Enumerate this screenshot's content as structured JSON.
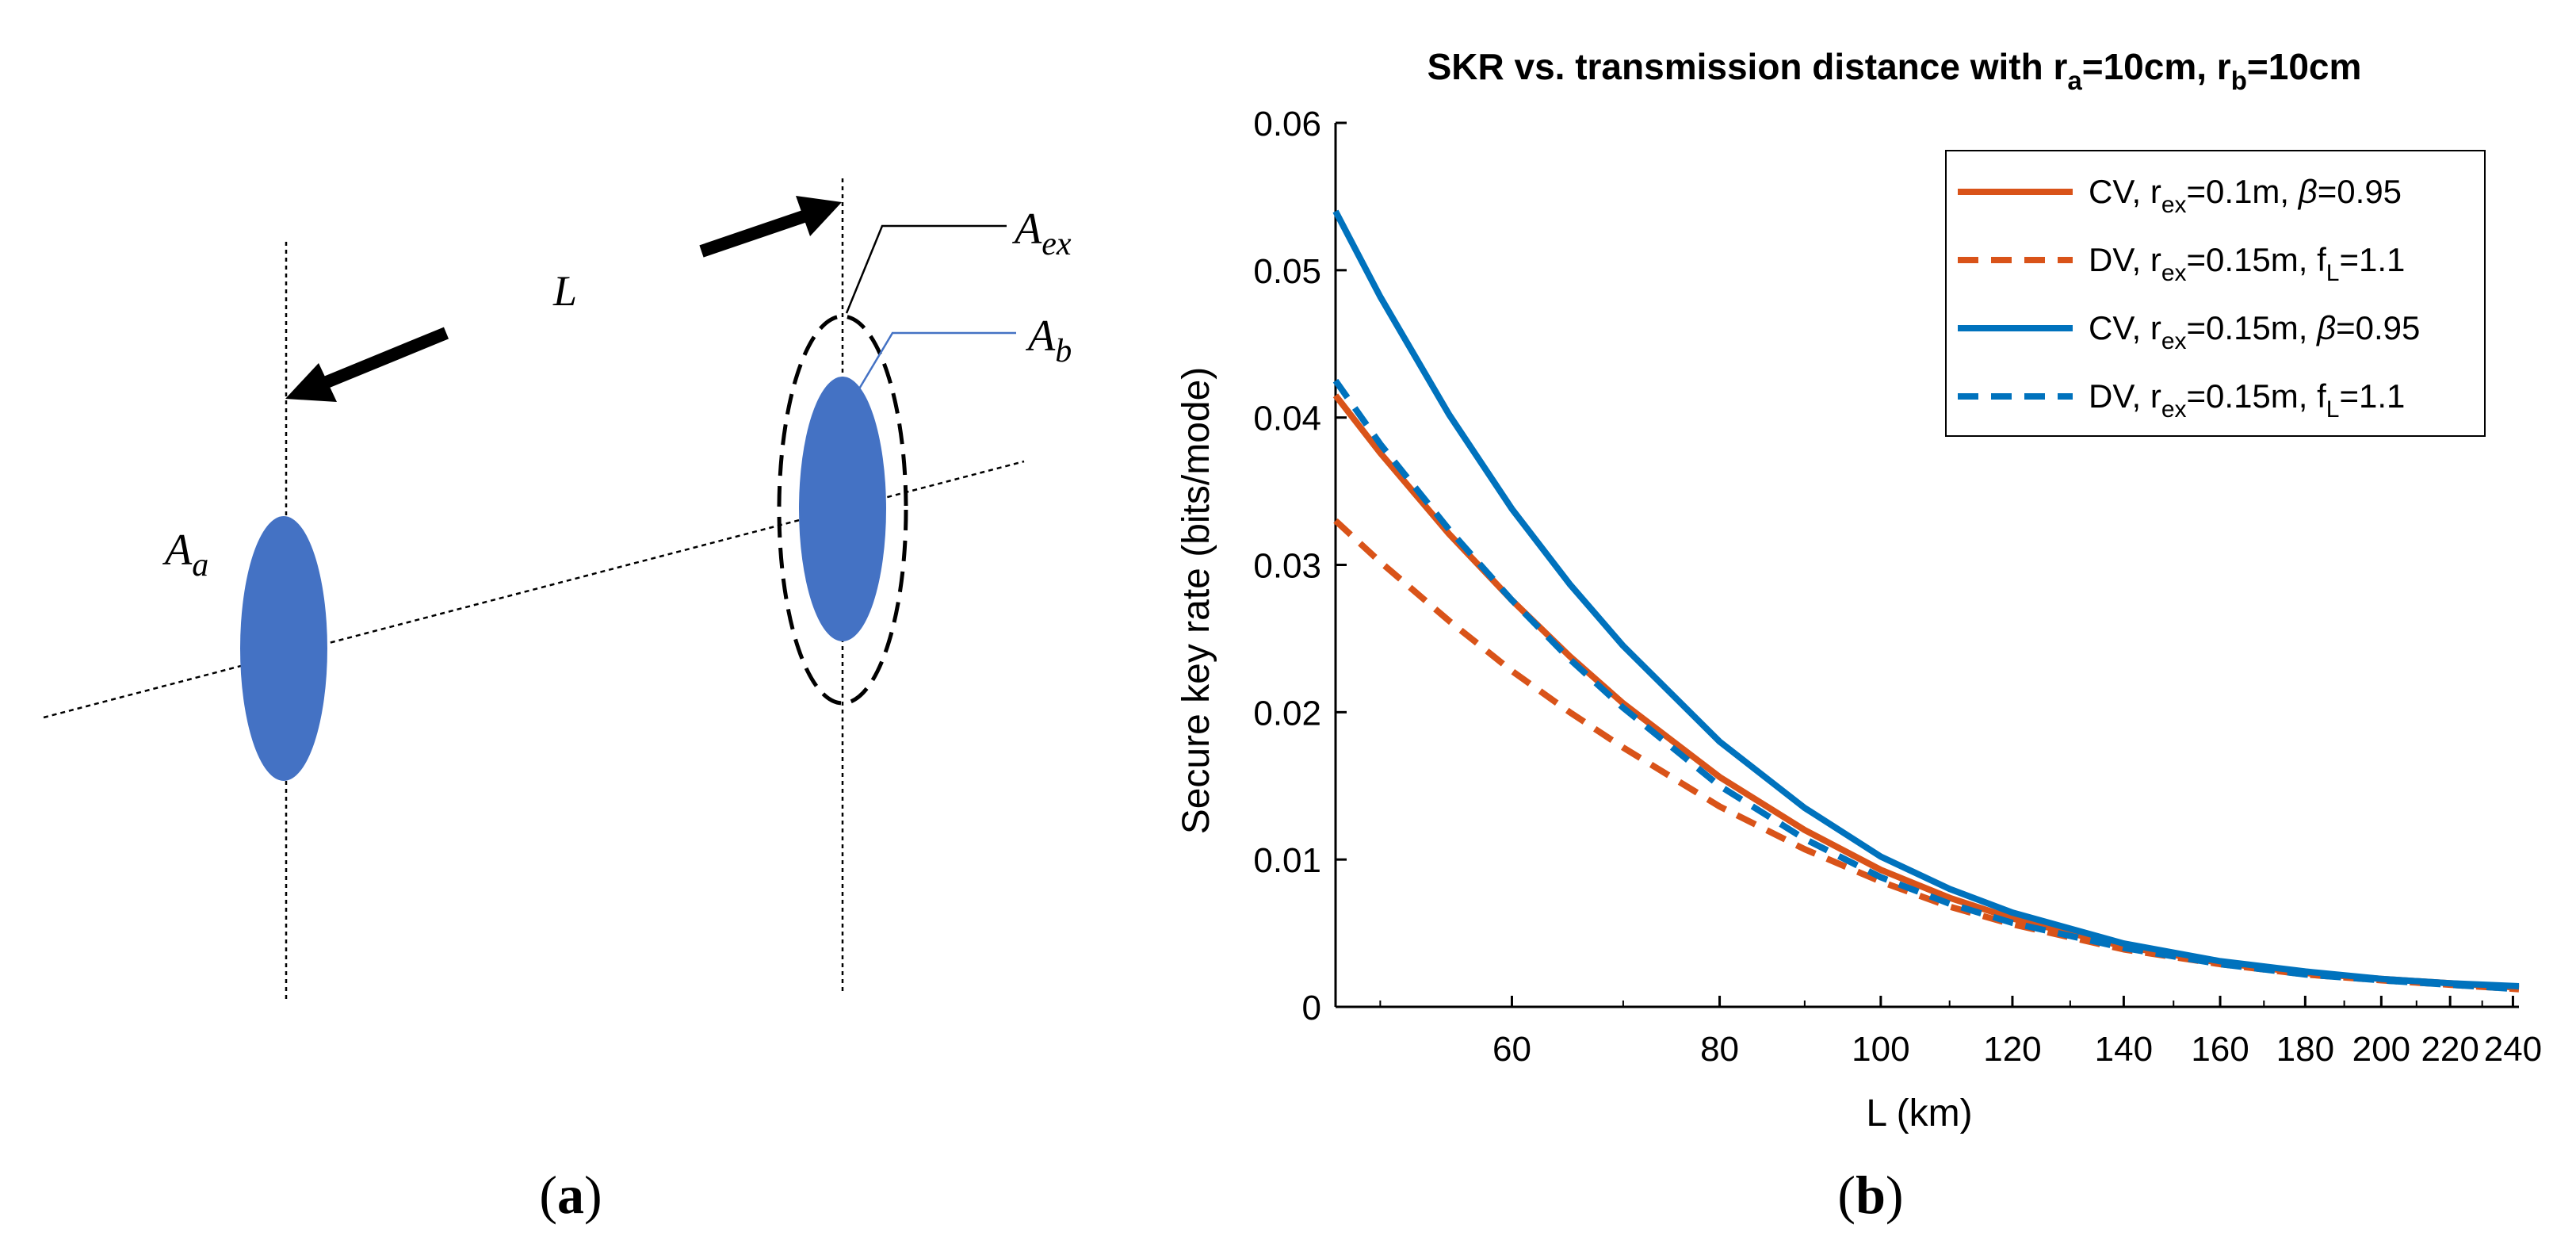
{
  "panel_a": {
    "caption_open": "(",
    "caption_letter": "a",
    "caption_close": ")",
    "label_L": "L",
    "label_Aa_main": "A",
    "label_Aa_sub": "a",
    "label_Ab_main": "A",
    "label_Ab_sub": "b",
    "label_Aex_main": "A",
    "label_Aex_sub": "ex",
    "colors": {
      "aperture": "#4472C4",
      "line": "#000000"
    }
  },
  "panel_b": {
    "caption_open": "(",
    "caption_letter": "b",
    "caption_close": ")"
  },
  "chart_data": {
    "type": "line",
    "title_parts": [
      {
        "text": "SKR vs. transmission distance with r"
      },
      {
        "text": "a",
        "sub": true
      },
      {
        "text": "=10cm, r"
      },
      {
        "text": "b",
        "sub": true
      },
      {
        "text": "=10cm"
      }
    ],
    "xlabel": "L (km)",
    "ylabel": "Secure key rate (bits/mode)",
    "xscale": "log",
    "xlim": [
      47,
      242
    ],
    "ylim": [
      0,
      0.06
    ],
    "xticks": [
      60,
      80,
      100,
      120,
      140,
      160,
      180,
      200,
      220,
      240
    ],
    "yticks": [
      0,
      0.01,
      0.02,
      0.03,
      0.04,
      0.05,
      0.06
    ],
    "ytick_labels": [
      "0",
      "0.01",
      "0.02",
      "0.03",
      "0.04",
      "0.05",
      "0.06"
    ],
    "legend_position": "top-right",
    "x": [
      47,
      50,
      55,
      60,
      65,
      70,
      80,
      90,
      100,
      110,
      120,
      140,
      160,
      180,
      200,
      220,
      242
    ],
    "series": [
      {
        "name": "CV, r_ex=0.1m, beta=0.95",
        "legend_parts": [
          {
            "text": "CV, r"
          },
          {
            "text": "ex",
            "sub": true
          },
          {
            "text": "=0.1m, "
          },
          {
            "text": "β",
            "italic": true
          },
          {
            "text": "=0.95"
          }
        ],
        "color": "#D95319",
        "dash": "solid",
        "values": [
          0.0415,
          0.0376,
          0.0321,
          0.0276,
          0.0238,
          0.0206,
          0.0156,
          0.012,
          0.0093,
          0.0074,
          0.006,
          0.0041,
          0.003,
          0.0023,
          0.0019,
          0.0016,
          0.0013
        ]
      },
      {
        "name": "DV, r_ex=0.15m, f_L=1.1",
        "legend_parts": [
          {
            "text": "DV, r"
          },
          {
            "text": "ex",
            "sub": true
          },
          {
            "text": "=0.15m, f"
          },
          {
            "text": "L",
            "sub": true
          },
          {
            "text": "=1.1"
          }
        ],
        "color": "#D95319",
        "dash": "dashed",
        "values": [
          0.033,
          0.0302,
          0.0262,
          0.0228,
          0.02,
          0.0176,
          0.0136,
          0.0107,
          0.0085,
          0.0068,
          0.0056,
          0.0039,
          0.0029,
          0.0022,
          0.0018,
          0.0015,
          0.0012
        ]
      },
      {
        "name": "CV, r_ex=0.15m, beta=0.95",
        "legend_parts": [
          {
            "text": "CV, r"
          },
          {
            "text": "ex",
            "sub": true
          },
          {
            "text": "=0.15m, "
          },
          {
            "text": "β",
            "italic": true
          },
          {
            "text": "=0.95"
          }
        ],
        "color": "#0072BD",
        "dash": "solid",
        "values": [
          0.054,
          0.0482,
          0.0402,
          0.0338,
          0.0287,
          0.0245,
          0.018,
          0.0135,
          0.0102,
          0.008,
          0.0064,
          0.0043,
          0.0031,
          0.0024,
          0.0019,
          0.0016,
          0.0014
        ]
      },
      {
        "name": "DV, r_ex=0.15m, f_L=1.1",
        "legend_parts": [
          {
            "text": "DV, r"
          },
          {
            "text": "ex",
            "sub": true
          },
          {
            "text": "=0.15m, f"
          },
          {
            "text": "L",
            "sub": true
          },
          {
            "text": "=1.1"
          }
        ],
        "color": "#0072BD",
        "dash": "dashed",
        "values": [
          0.0425,
          0.0382,
          0.0324,
          0.0276,
          0.0236,
          0.0203,
          0.015,
          0.0114,
          0.0088,
          0.007,
          0.0057,
          0.004,
          0.0029,
          0.0022,
          0.0018,
          0.0015,
          0.0012
        ]
      }
    ]
  }
}
